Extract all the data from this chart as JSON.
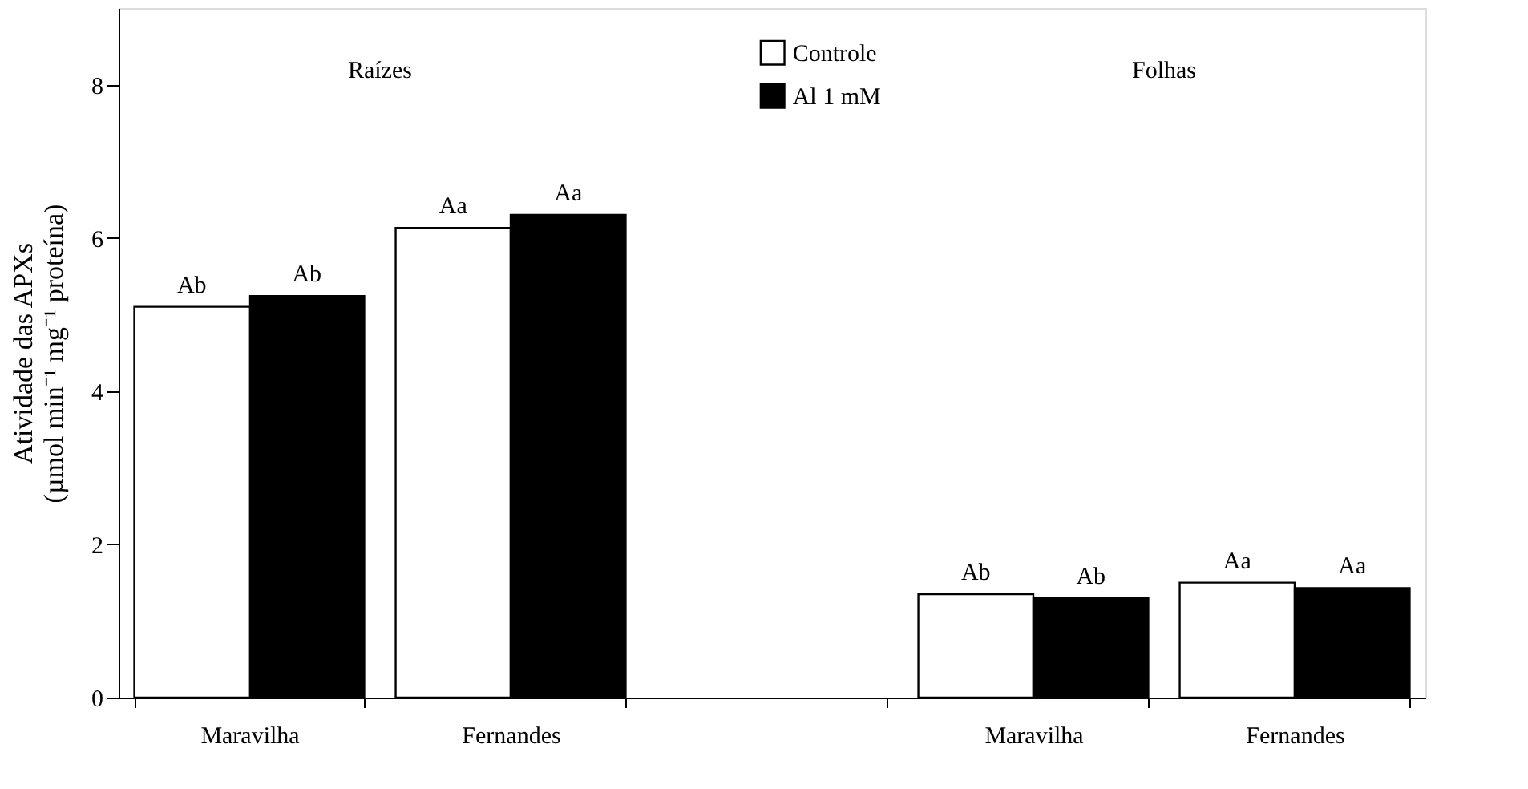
{
  "chart_data": {
    "type": "bar",
    "ylabel": "Atividade das APXs\n(µmol min⁻¹ mg⁻¹ proteína)",
    "categories": [
      "Maravilha",
      "Fernandes",
      null,
      "Maravilha",
      "Fernandes"
    ],
    "series": [
      {
        "name": "Controle",
        "color": "#ffffff",
        "values": [
          5.1,
          6.13,
          null,
          1.35,
          1.5
        ],
        "value_labels": [
          "Ab",
          "Aa",
          null,
          "Ab",
          "Aa"
        ]
      },
      {
        "name": "Al 1 mM",
        "color": "#000000",
        "values": [
          5.24,
          6.3,
          null,
          1.3,
          1.43
        ],
        "value_labels": [
          "Ab",
          "Aa",
          null,
          "Ab",
          "Aa"
        ]
      }
    ],
    "annotations": [
      "Raízes",
      "Folhas"
    ],
    "ylim": [
      0,
      9
    ],
    "yticks": [
      0,
      2,
      4,
      6,
      8
    ],
    "grid": false,
    "legend": "top"
  }
}
